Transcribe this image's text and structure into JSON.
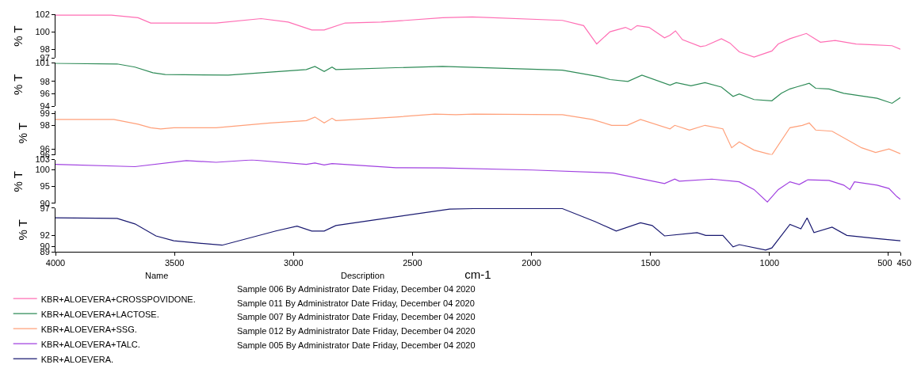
{
  "chart_data": [
    {
      "type": "line",
      "ylabel": "% T",
      "xlim": [
        4000,
        450
      ],
      "xticks": [
        4000,
        3500,
        3000,
        2500,
        2000,
        1500,
        1000,
        500,
        450
      ],
      "ylim": [
        97,
        102
      ],
      "yticks": [
        102,
        100,
        98,
        97
      ],
      "tick_labels": "y",
      "legend": "bottom",
      "series": [
        {
          "name": "KBR+ALOEVERA+CROSSPOVIDONE.",
          "color": "#ff6eb4",
          "x": [
            4000,
            3765,
            3653,
            3600,
            3525,
            3325,
            3136,
            3022,
            2923,
            2871,
            2783,
            2632,
            2374,
            2249,
            1870,
            1781,
            1726,
            1670,
            1605,
            1582,
            1556,
            1506,
            1441,
            1418,
            1395,
            1366,
            1290,
            1268,
            1202,
            1166,
            1127,
            1065,
            990,
            963,
            914,
            845,
            786,
            724,
            636,
            561,
            485,
            450
          ],
          "values": [
            101.9,
            101.9,
            101.6,
            101.0,
            101.0,
            101.0,
            101.5,
            101.1,
            100.2,
            100.2,
            101.0,
            101.1,
            101.6,
            101.7,
            101.3,
            100.7,
            98.6,
            100.0,
            100.5,
            100.2,
            100.7,
            100.5,
            99.3,
            99.6,
            100.1,
            99.1,
            98.3,
            98.4,
            99.2,
            98.7,
            97.7,
            97.1,
            97.8,
            98.6,
            99.2,
            99.8,
            98.8,
            99.0,
            98.6,
            98.5,
            98.4,
            98.0
          ]
        }
      ]
    },
    {
      "type": "line",
      "ylabel": "% T",
      "xlim": [
        4000,
        450
      ],
      "xticks": [
        4000,
        3500,
        3000,
        2500,
        2000,
        1500,
        1000,
        500,
        450
      ],
      "ylim": [
        94,
        101
      ],
      "yticks": [
        101,
        98,
        96,
        94
      ],
      "tick_labels": "y",
      "legend": "bottom",
      "series": [
        {
          "name": "KBR+ALOEVERA+LACTOSE.",
          "color": "#2e8b57",
          "x": [
            4000,
            3741,
            3666,
            3591,
            3539,
            3274,
            2946,
            2910,
            2871,
            2838,
            2822,
            2570,
            2374,
            1870,
            1719,
            1670,
            1595,
            1536,
            1418,
            1392,
            1330,
            1271,
            1202,
            1153,
            1127,
            1065,
            990,
            950,
            914,
            888,
            833,
            806,
            750,
            688,
            548,
            485,
            450
          ],
          "values": [
            100.9,
            100.8,
            100.3,
            99.4,
            99.1,
            99.0,
            99.9,
            100.4,
            99.6,
            100.3,
            99.9,
            100.2,
            100.4,
            99.8,
            98.8,
            98.3,
            98.0,
            99.0,
            97.4,
            97.8,
            97.3,
            97.8,
            97.1,
            95.6,
            96.0,
            95.1,
            94.9,
            96.1,
            96.8,
            97.1,
            97.7,
            96.9,
            96.8,
            96.1,
            95.3,
            94.5,
            95.4
          ]
        }
      ]
    },
    {
      "type": "line",
      "ylabel": "% T",
      "xlim": [
        4000,
        450
      ],
      "xticks": [
        4000,
        3500,
        3000,
        2500,
        2000,
        1500,
        1000,
        500,
        450
      ],
      "ylim": [
        95.5,
        99.2
      ],
      "yticks": [
        99,
        98,
        96,
        {
          "value": 95.5,
          "label": "96"
        }
      ],
      "tick_labels": "y",
      "legend": "bottom",
      "series": [
        {
          "name": "KBR+ALOEVERA+SSG.",
          "color": "#ffa07a",
          "x": [
            4000,
            3755,
            3653,
            3600,
            3558,
            3503,
            3325,
            3100,
            2946,
            2910,
            2871,
            2838,
            2822,
            2570,
            2406,
            2318,
            2243,
            1870,
            1745,
            1663,
            1598,
            1542,
            1418,
            1398,
            1336,
            1271,
            1196,
            1159,
            1127,
            1065,
            990,
            914,
            862,
            833,
            806,
            737,
            613,
            554,
            498,
            450
          ],
          "values": [
            98.5,
            98.5,
            98.1,
            97.8,
            97.7,
            97.8,
            97.8,
            98.2,
            98.4,
            98.7,
            98.2,
            98.6,
            98.4,
            98.7,
            98.95,
            98.9,
            98.95,
            98.9,
            98.5,
            98.0,
            98.0,
            98.5,
            97.7,
            98.0,
            97.6,
            98.0,
            97.7,
            96.1,
            96.6,
            95.9,
            95.5,
            97.8,
            98.0,
            98.2,
            97.6,
            97.5,
            96.1,
            95.7,
            96.0,
            95.6
          ]
        }
      ]
    },
    {
      "type": "line",
      "ylabel": "% T",
      "xlim": [
        4000,
        450
      ],
      "xticks": [
        4000,
        3500,
        3000,
        2500,
        2000,
        1500,
        1000,
        500,
        450
      ],
      "ylim": [
        90,
        103
      ],
      "yticks": [
        103,
        100,
        95,
        90
      ],
      "tick_labels": "y",
      "legend": "bottom",
      "series": [
        {
          "name": "KBR+ALOEVERA+TALC.",
          "color": "#a040e0",
          "x": [
            4000,
            3666,
            3450,
            3325,
            3175,
            2946,
            2910,
            2871,
            2838,
            2570,
            2374,
            1997,
            1657,
            1441,
            1398,
            1379,
            1242,
            1127,
            1065,
            1009,
            963,
            914,
            875,
            839,
            750,
            688,
            662,
            643,
            548,
            498,
            465,
            450
          ],
          "values": [
            101.6,
            100.9,
            102.7,
            102.2,
            102.9,
            101.6,
            102.0,
            101.4,
            101.8,
            100.6,
            100.5,
            99.9,
            99.0,
            95.9,
            97.2,
            96.6,
            97.2,
            96.4,
            94.1,
            90.4,
            94.1,
            96.4,
            95.6,
            97.0,
            96.8,
            95.4,
            94.1,
            96.4,
            95.4,
            94.4,
            92.0,
            91.2
          ]
        }
      ]
    },
    {
      "type": "line",
      "xlabel": "cm-1",
      "ylabel": "% T",
      "xlim": [
        4000,
        450
      ],
      "xticks": [
        4000,
        3500,
        3000,
        2500,
        2000,
        1500,
        1000,
        500,
        450
      ],
      "ylim": [
        89,
        97
      ],
      "yticks": [
        97,
        92,
        90,
        89
      ],
      "legend": "bottom",
      "annotations": [
        "Name",
        "Description",
        "Sample 006 By Administrator Date Friday, December 04 2020",
        "Sample 011 By Administrator Date Friday, December 04 2020",
        "Sample 007 By Administrator Date Friday, December 04 2020",
        "Sample 012 By Administrator Date Friday, December 04 2020",
        "Sample 005 By Administrator Date Friday, December 04 2020"
      ],
      "series": [
        {
          "name": "KBR+ALOEVERA.",
          "color": "#191970",
          "x": [
            4000,
            3741,
            3666,
            3578,
            3503,
            3300,
            3074,
            2985,
            2923,
            2871,
            2822,
            2570,
            2344,
            2243,
            1870,
            1732,
            1644,
            1542,
            1493,
            1441,
            1304,
            1268,
            1196,
            1153,
            1127,
            1016,
            990,
            914,
            868,
            842,
            813,
            737,
            675,
            548,
            450
          ],
          "values": [
            95.2,
            95.1,
            94.1,
            91.9,
            91.0,
            90.2,
            92.8,
            93.7,
            92.8,
            92.8,
            93.8,
            95.4,
            96.8,
            96.9,
            96.9,
            94.5,
            92.8,
            94.3,
            93.8,
            91.9,
            92.5,
            92.0,
            92.0,
            89.9,
            90.3,
            89.3,
            89.7,
            94.0,
            93.2,
            95.2,
            92.5,
            93.5,
            92.0,
            91.4,
            91.0
          ]
        }
      ]
    }
  ]
}
